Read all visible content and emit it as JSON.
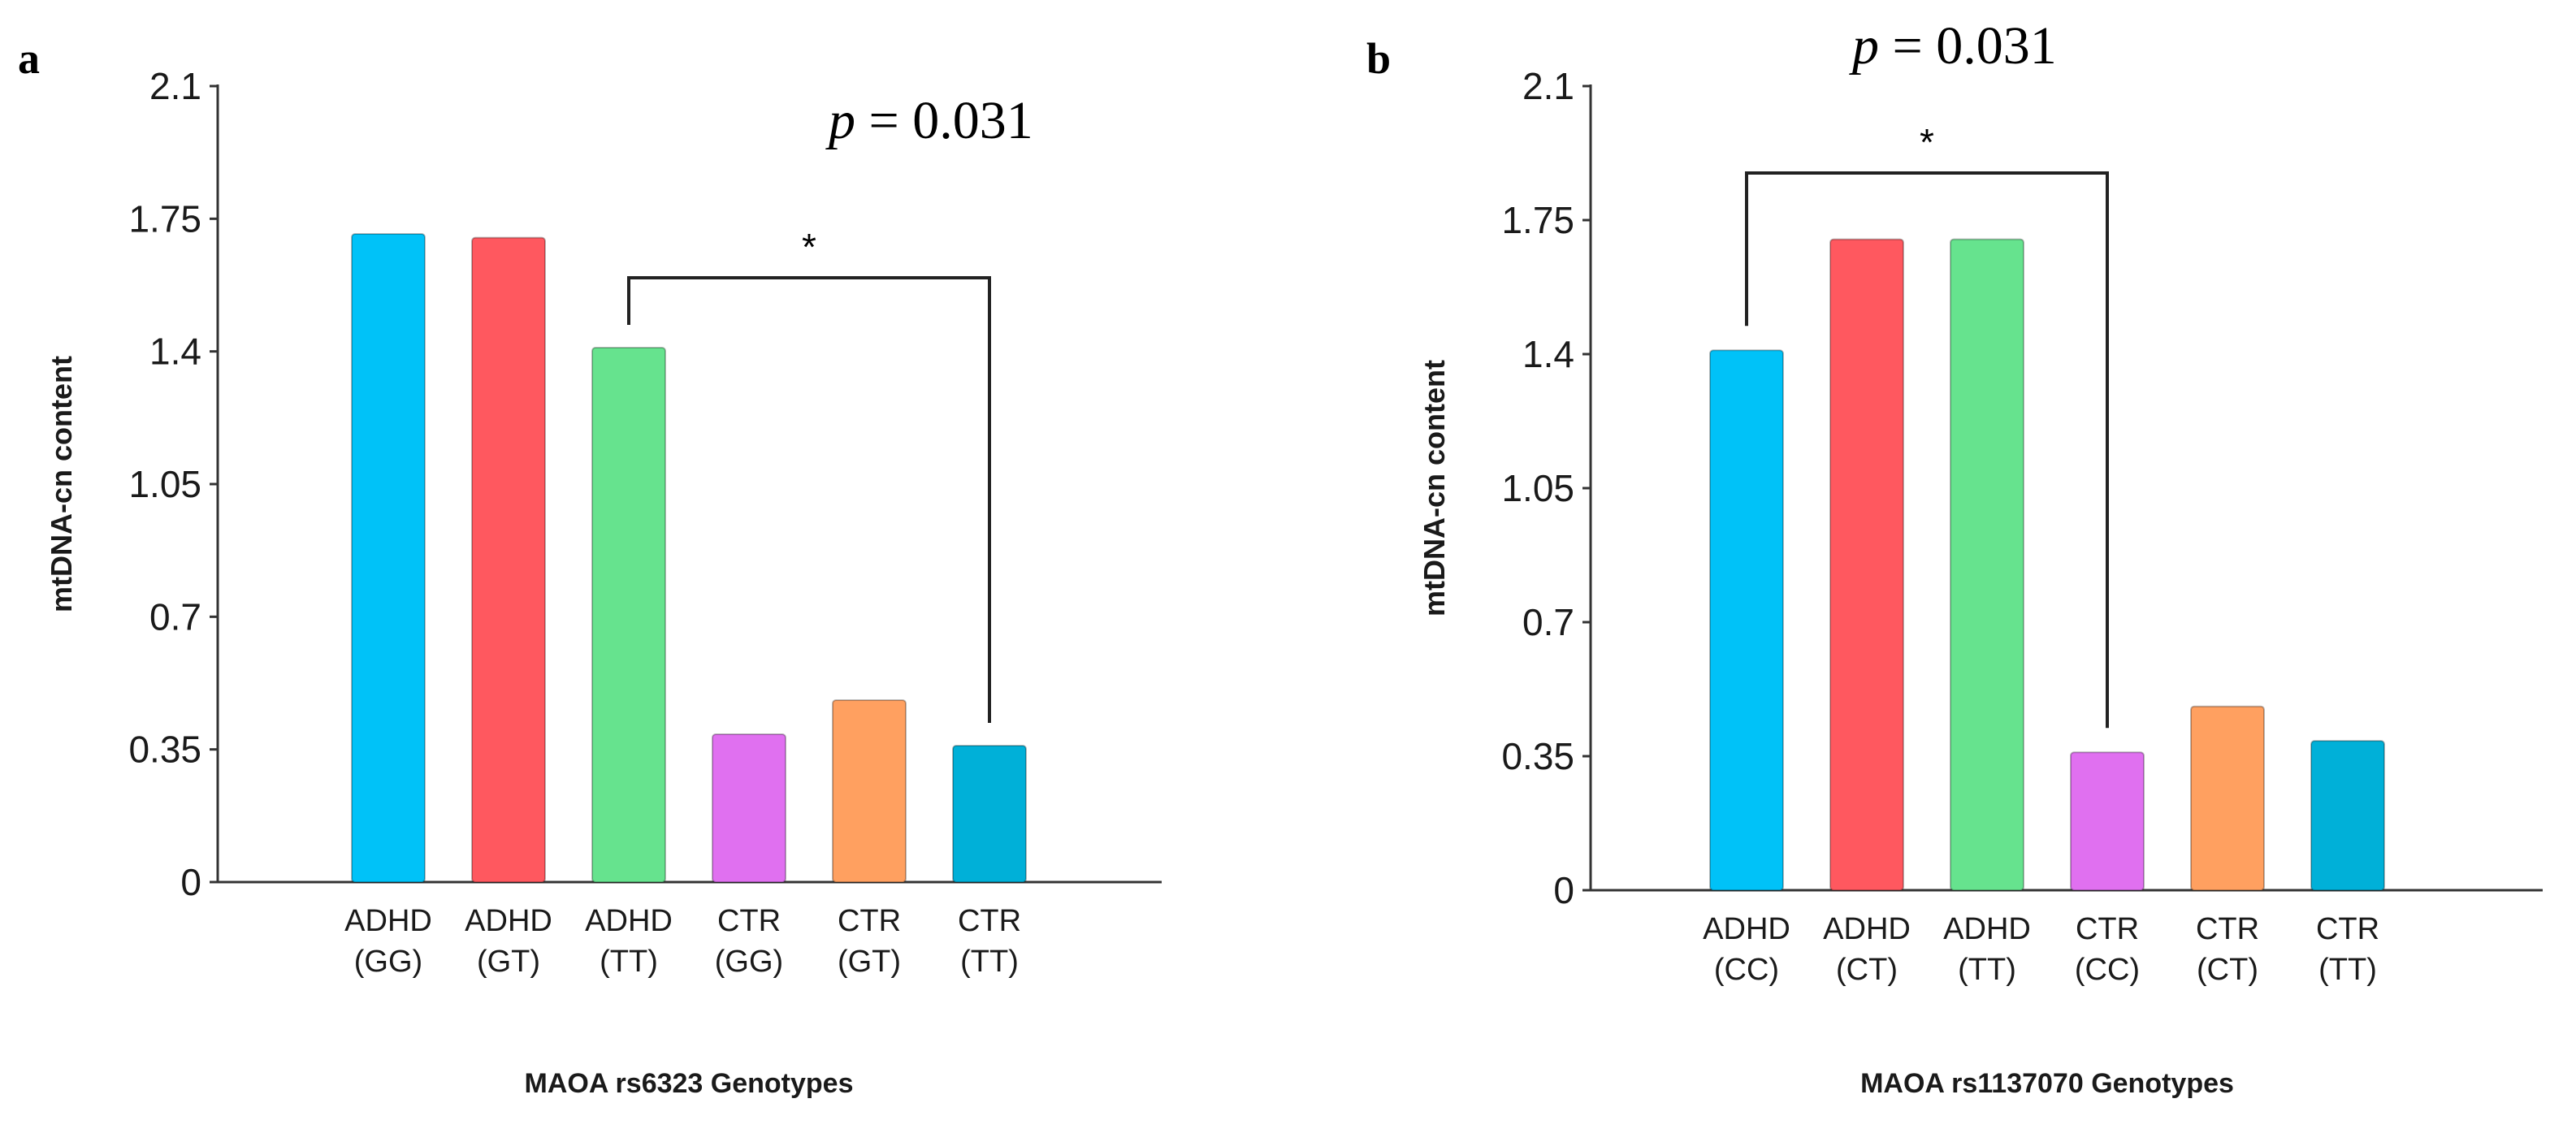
{
  "chart_data": [
    {
      "type": "bar",
      "panel": "a",
      "title": "",
      "xlabel": "MAOA rs6323 Genotypes",
      "ylabel": "mtDNA-cn content",
      "ylim": [
        0,
        2.1
      ],
      "yticks": [
        "0",
        "0.35",
        "0.7",
        "1.05",
        "1.4",
        "1.75",
        "2.1"
      ],
      "categories": [
        {
          "line1": "ADHD",
          "line2": "(GG)"
        },
        {
          "line1": "ADHD",
          "line2": "(GT)"
        },
        {
          "line1": "ADHD",
          "line2": "(TT)"
        },
        {
          "line1": "CTR",
          "line2": "(GG)"
        },
        {
          "line1": "CTR",
          "line2": "(GT)"
        },
        {
          "line1": "CTR",
          "line2": "(TT)"
        }
      ],
      "values": [
        1.71,
        1.7,
        1.41,
        0.39,
        0.48,
        0.36
      ],
      "colors": [
        "#00c2f8",
        "#ff585f",
        "#66e38e",
        "#e070f0",
        "#ffa060",
        "#00b0d8"
      ],
      "annotation": {
        "p_label": "p",
        "p_text": "= 0.031",
        "star": "*",
        "from_index": 2,
        "to_index": 5
      }
    },
    {
      "type": "bar",
      "panel": "b",
      "title": "",
      "xlabel": "MAOA rs1137070 Genotypes",
      "ylabel": "mtDNA-cn content",
      "ylim": [
        0,
        2.1
      ],
      "yticks": [
        "0",
        "0.35",
        "0.7",
        "1.05",
        "1.4",
        "1.75",
        "2.1"
      ],
      "categories": [
        {
          "line1": "ADHD",
          "line2": "(CC)"
        },
        {
          "line1": "ADHD",
          "line2": "(CT)"
        },
        {
          "line1": "ADHD",
          "line2": "(TT)"
        },
        {
          "line1": "CTR",
          "line2": "(CC)"
        },
        {
          "line1": "CTR",
          "line2": "(CT)"
        },
        {
          "line1": "CTR",
          "line2": "(TT)"
        }
      ],
      "values": [
        1.41,
        1.7,
        1.7,
        0.36,
        0.48,
        0.39
      ],
      "colors": [
        "#00c2f8",
        "#ff585f",
        "#66e38e",
        "#e070f0",
        "#ffa060",
        "#00b0d8"
      ],
      "annotation": {
        "p_label": "p",
        "p_text": "= 0.031",
        "star": "*",
        "from_index": 0,
        "to_index": 3
      }
    }
  ]
}
